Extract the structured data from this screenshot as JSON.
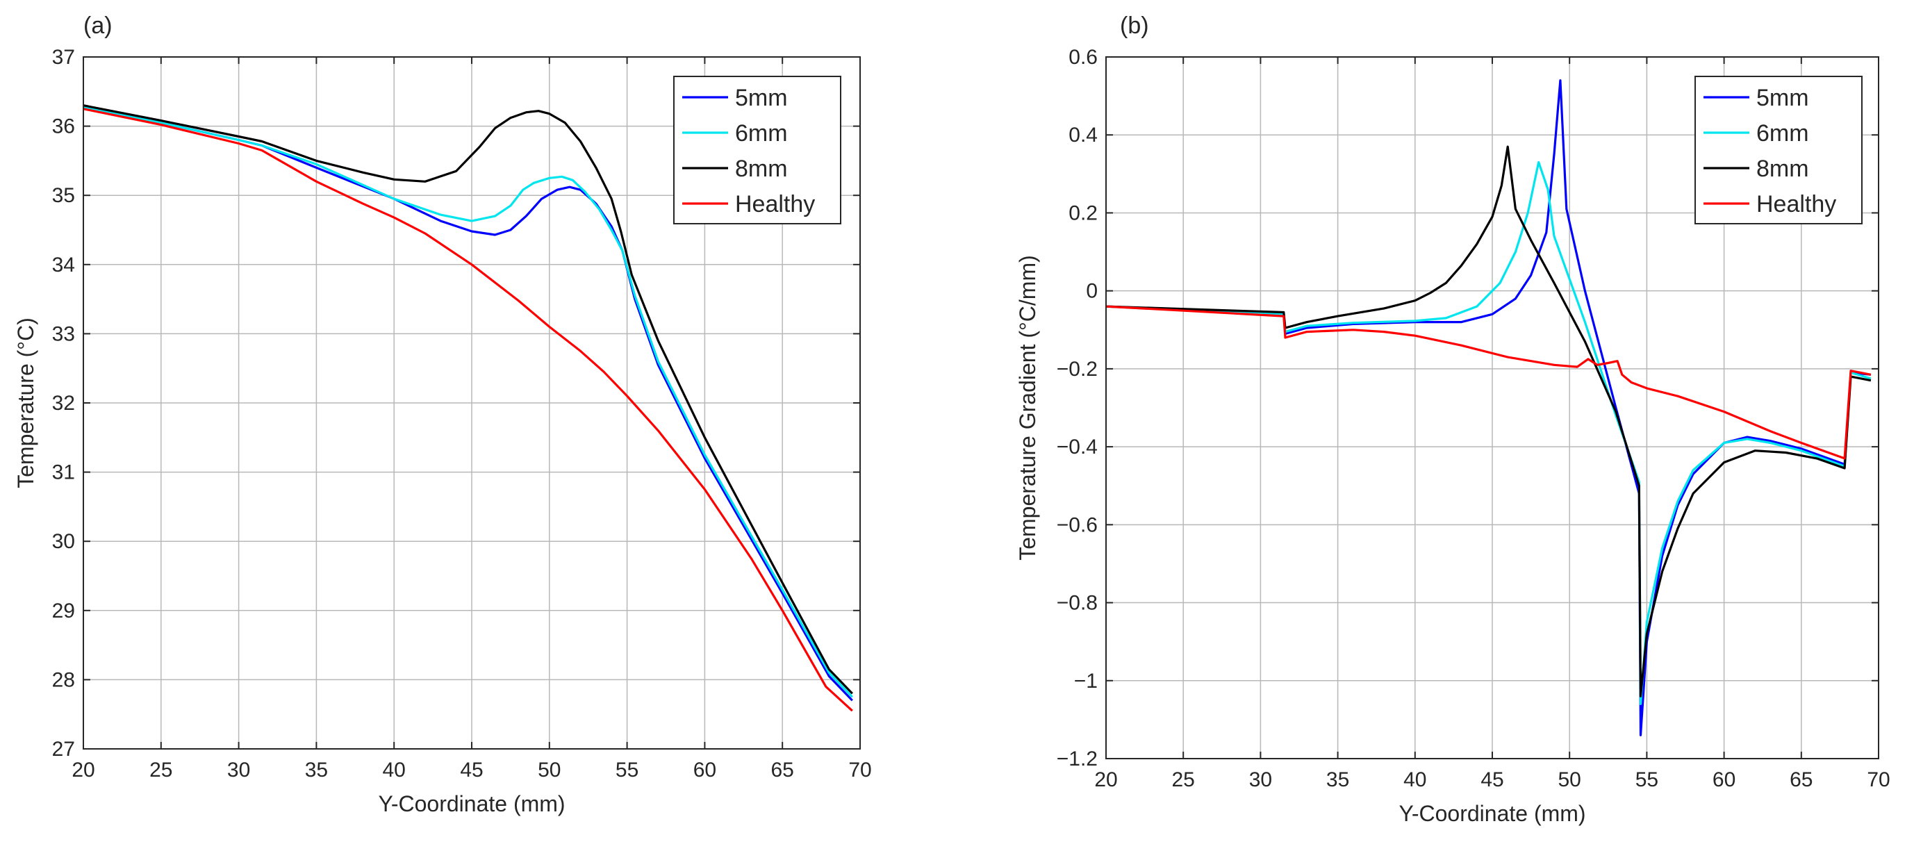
{
  "chart_data": [
    {
      "panel": "(a)",
      "type": "line",
      "xlabel": "Y-Coordinate (mm)",
      "ylabel": "Temperature (°C)",
      "xlim": [
        20,
        70
      ],
      "ylim": [
        27,
        37
      ],
      "xticks": [
        20,
        25,
        30,
        35,
        40,
        45,
        50,
        55,
        60,
        65,
        70
      ],
      "yticks": [
        27,
        28,
        29,
        30,
        31,
        32,
        33,
        34,
        35,
        36,
        37
      ],
      "grid": true,
      "legend_position": "top-right",
      "series": [
        {
          "name": "5mm",
          "color": "#0000ff",
          "x": [
            20,
            25,
            30,
            31.5,
            35,
            40,
            43,
            45,
            46.5,
            47.5,
            48.5,
            49.5,
            50.5,
            51.3,
            52,
            53,
            54,
            54.7,
            55.5,
            57,
            60,
            65,
            68,
            69.5
          ],
          "y": [
            36.27,
            36.05,
            35.8,
            35.72,
            35.4,
            34.95,
            34.63,
            34.48,
            34.43,
            34.5,
            34.7,
            34.95,
            35.08,
            35.12,
            35.08,
            34.88,
            34.55,
            34.2,
            33.5,
            32.55,
            31.2,
            29.25,
            28.05,
            27.7
          ]
        },
        {
          "name": "6mm",
          "color": "#00e5ee",
          "x": [
            20,
            25,
            30,
            31.5,
            35,
            40,
            43,
            45,
            46.5,
            47.5,
            48.3,
            49,
            50,
            50.8,
            51.5,
            52.3,
            53.2,
            54,
            54.7,
            55.5,
            57,
            60,
            65,
            68,
            69.5
          ],
          "y": [
            36.27,
            36.05,
            35.8,
            35.72,
            35.45,
            34.95,
            34.72,
            34.63,
            34.7,
            34.85,
            35.08,
            35.18,
            35.25,
            35.27,
            35.22,
            35.05,
            34.8,
            34.5,
            34.2,
            33.55,
            32.6,
            31.25,
            29.3,
            28.1,
            27.75
          ]
        },
        {
          "name": "8mm",
          "color": "#000000",
          "x": [
            20,
            25,
            30,
            31.5,
            35,
            38,
            40,
            42,
            44,
            45.5,
            46.5,
            47.5,
            48.5,
            49.3,
            50,
            51,
            52,
            53,
            54,
            54.6,
            55.3,
            57,
            60,
            65,
            68,
            69.5
          ],
          "y": [
            36.3,
            36.08,
            35.85,
            35.78,
            35.5,
            35.33,
            35.23,
            35.2,
            35.35,
            35.7,
            35.97,
            36.12,
            36.2,
            36.22,
            36.18,
            36.05,
            35.78,
            35.4,
            34.95,
            34.48,
            33.85,
            32.9,
            31.5,
            29.4,
            28.15,
            27.8
          ]
        },
        {
          "name": "Healthy",
          "color": "#ff0000",
          "x": [
            20,
            25,
            30,
            31.5,
            35,
            38,
            40,
            42,
            45,
            48,
            50,
            52,
            53.5,
            55,
            57,
            60,
            63,
            65,
            67.8,
            69.5
          ],
          "y": [
            36.25,
            36.02,
            35.75,
            35.65,
            35.2,
            34.88,
            34.68,
            34.45,
            34.0,
            33.48,
            33.1,
            32.75,
            32.45,
            32.1,
            31.6,
            30.75,
            29.75,
            29.0,
            27.9,
            27.55
          ]
        }
      ]
    },
    {
      "panel": "(b)",
      "type": "line",
      "xlabel": "Y-Coordinate (mm)",
      "ylabel": "Temperature Gradient (°C/mm)",
      "xlim": [
        20,
        70
      ],
      "ylim": [
        -1.2,
        0.6
      ],
      "xticks": [
        20,
        25,
        30,
        35,
        40,
        45,
        50,
        55,
        60,
        65,
        70
      ],
      "yticks": [
        -1.2,
        -1,
        -0.8,
        -0.6,
        -0.4,
        -0.2,
        0,
        0.2,
        0.4,
        0.6
      ],
      "ytick_labels": [
        "−1.2",
        "−1",
        "−0.8",
        "−0.6",
        "−0.4",
        "−0.2",
        "0",
        "0.2",
        "0.4",
        "0.6"
      ],
      "grid": true,
      "legend_position": "top-right",
      "series": [
        {
          "name": "5mm",
          "color": "#0000ff",
          "x": [
            20,
            31.5,
            31.6,
            33,
            36,
            40,
            43,
            45,
            46.5,
            47.5,
            48.5,
            49,
            49.4,
            49.8,
            51,
            53,
            54.5,
            54.6,
            55,
            56,
            57,
            58,
            60,
            61.5,
            63,
            65,
            67.8,
            68.2,
            69.5
          ],
          "y": [
            -0.04,
            -0.06,
            -0.11,
            -0.095,
            -0.085,
            -0.08,
            -0.08,
            -0.06,
            -0.02,
            0.04,
            0.15,
            0.35,
            0.54,
            0.21,
            0.0,
            -0.3,
            -0.52,
            -1.14,
            -0.9,
            -0.68,
            -0.55,
            -0.47,
            -0.39,
            -0.375,
            -0.385,
            -0.405,
            -0.445,
            -0.21,
            -0.215
          ]
        },
        {
          "name": "6mm",
          "color": "#00e5ee",
          "x": [
            20,
            31.5,
            31.6,
            33,
            36,
            40,
            42,
            44,
            45.5,
            46.5,
            47.3,
            48,
            48.6,
            49,
            51,
            53,
            54.5,
            54.6,
            55,
            56,
            57,
            58,
            60,
            61.5,
            63,
            65,
            67.8,
            68.2,
            69.5
          ],
          "y": [
            -0.04,
            -0.06,
            -0.105,
            -0.09,
            -0.082,
            -0.077,
            -0.07,
            -0.04,
            0.02,
            0.1,
            0.2,
            0.33,
            0.26,
            0.14,
            -0.08,
            -0.32,
            -0.49,
            -1.06,
            -0.85,
            -0.66,
            -0.54,
            -0.46,
            -0.39,
            -0.38,
            -0.39,
            -0.41,
            -0.45,
            -0.21,
            -0.225
          ]
        },
        {
          "name": "8mm",
          "color": "#000000",
          "x": [
            20,
            31.5,
            31.6,
            33,
            35,
            38,
            40,
            41,
            42,
            43,
            44,
            45,
            45.6,
            46,
            46.5,
            47.5,
            49,
            51,
            53,
            54.5,
            54.6,
            55,
            56,
            57,
            58,
            60,
            62,
            64,
            66,
            67.8,
            68.2,
            69.5
          ],
          "y": [
            -0.04,
            -0.055,
            -0.095,
            -0.08,
            -0.065,
            -0.045,
            -0.025,
            -0.005,
            0.02,
            0.065,
            0.12,
            0.19,
            0.27,
            0.37,
            0.21,
            0.13,
            0.02,
            -0.13,
            -0.31,
            -0.5,
            -1.04,
            -0.88,
            -0.72,
            -0.61,
            -0.52,
            -0.44,
            -0.41,
            -0.415,
            -0.43,
            -0.455,
            -0.22,
            -0.23
          ]
        },
        {
          "name": "Healthy",
          "color": "#ff0000",
          "x": [
            20,
            31.5,
            31.6,
            33,
            36,
            38,
            40,
            43,
            46,
            49,
            50.5,
            51.2,
            51.8,
            52.5,
            53.1,
            53.4,
            54,
            55,
            57,
            60,
            63,
            65,
            67.8,
            68.2,
            69.5
          ],
          "y": [
            -0.04,
            -0.065,
            -0.12,
            -0.105,
            -0.1,
            -0.105,
            -0.115,
            -0.14,
            -0.17,
            -0.19,
            -0.195,
            -0.175,
            -0.19,
            -0.185,
            -0.18,
            -0.215,
            -0.235,
            -0.25,
            -0.27,
            -0.31,
            -0.36,
            -0.39,
            -0.43,
            -0.205,
            -0.215
          ]
        }
      ]
    }
  ]
}
